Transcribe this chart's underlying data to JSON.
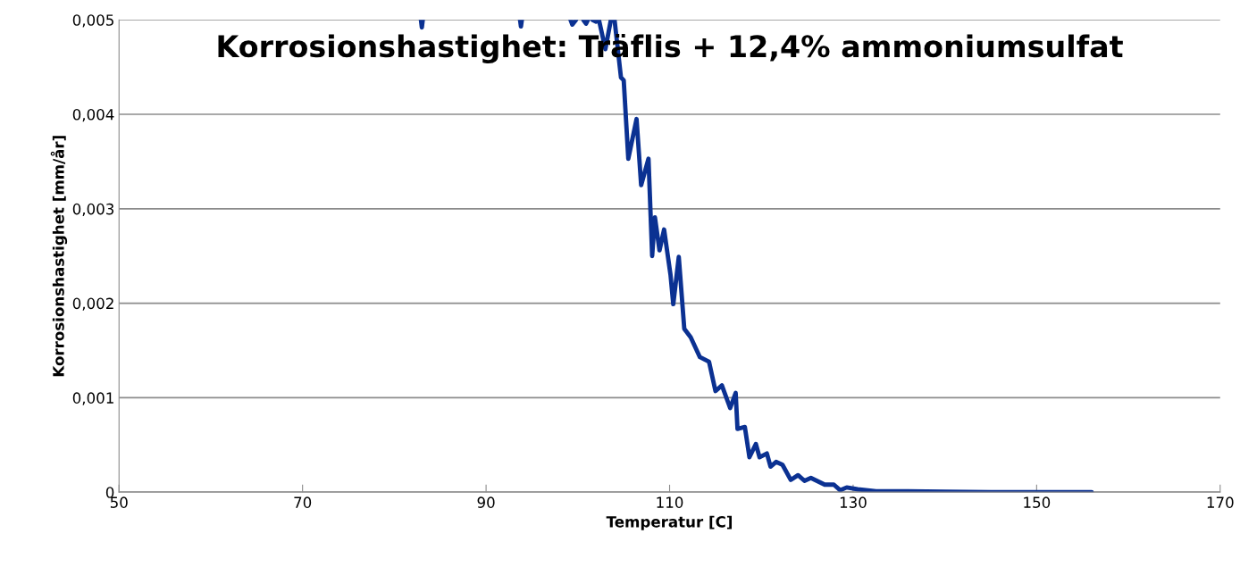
{
  "chart_data": {
    "type": "line",
    "title": "Korrosionshastighet: Träflis + 12,4% ammoniumsulfat",
    "xlabel": "Temperatur [C]",
    "ylabel": "Korrosionshastighet [mm/år]",
    "series": [
      {
        "color": "#0b3192",
        "x": [
          82.9,
          83.0,
          83.1,
          83.2,
          93.7,
          93.8,
          93.9,
          94.0,
          99.2,
          99.4,
          99.8,
          100.2,
          100.6,
          100.9,
          101.1,
          101.3,
          101.6,
          102.0,
          102.3,
          103.0,
          103.6,
          103.8,
          104.0,
          104.7,
          105.0,
          105.5,
          106.4,
          106.9,
          107.7,
          108.1,
          108.4,
          108.9,
          109.4,
          110.1,
          110.4,
          111.0,
          111.6,
          112.3,
          113.3,
          114.3,
          115.0,
          115.7,
          116.6,
          117.2,
          117.4,
          118.2,
          118.7,
          119.4,
          119.8,
          120.6,
          121.0,
          121.6,
          122.3,
          123.2,
          124.0,
          124.7,
          125.4,
          126.9,
          127.9,
          128.6,
          129.3,
          130.5,
          132.5,
          135,
          140,
          145,
          150,
          156
        ],
        "values": [
          0.005,
          0.00492,
          0.005,
          null,
          0.005,
          0.00493,
          0.005,
          null,
          0.005,
          0.00495,
          0.005,
          null,
          0.005,
          0.00496,
          0.005,
          null,
          0.005,
          0.00498,
          0.005,
          0.00469,
          0.005,
          null,
          0.005,
          0.00439,
          0.00436,
          0.00353,
          0.00395,
          0.00325,
          0.00353,
          0.0025,
          0.00291,
          0.00256,
          0.00278,
          0.0023,
          0.00199,
          0.00249,
          0.00173,
          0.00164,
          0.00143,
          0.00138,
          0.00107,
          0.00113,
          0.00089,
          0.00105,
          0.00067,
          0.00069,
          0.00037,
          0.00051,
          0.00037,
          0.00041,
          0.00027,
          0.00032,
          0.00029,
          0.00013,
          0.00018,
          0.00012,
          0.00015,
          8e-05,
          8e-05,
          2e-05,
          5e-05,
          3e-05,
          1e-05,
          1e-05,
          5e-06,
          0,
          0,
          0
        ]
      }
    ],
    "xlim": [
      50,
      170
    ],
    "xticks": [
      50,
      70,
      90,
      110,
      130,
      150,
      170
    ],
    "ylim": [
      0,
      0.005
    ],
    "yticks": [
      {
        "value": 0,
        "label": "0"
      },
      {
        "value": 0.001,
        "label": "0,001"
      },
      {
        "value": 0.002,
        "label": "0,002"
      },
      {
        "value": 0.003,
        "label": "0,003"
      },
      {
        "value": 0.004,
        "label": "0,004"
      },
      {
        "value": 0.005,
        "label": "0,005"
      }
    ],
    "grid": "y",
    "legend": false,
    "marker": "none",
    "line_style": "solid"
  }
}
